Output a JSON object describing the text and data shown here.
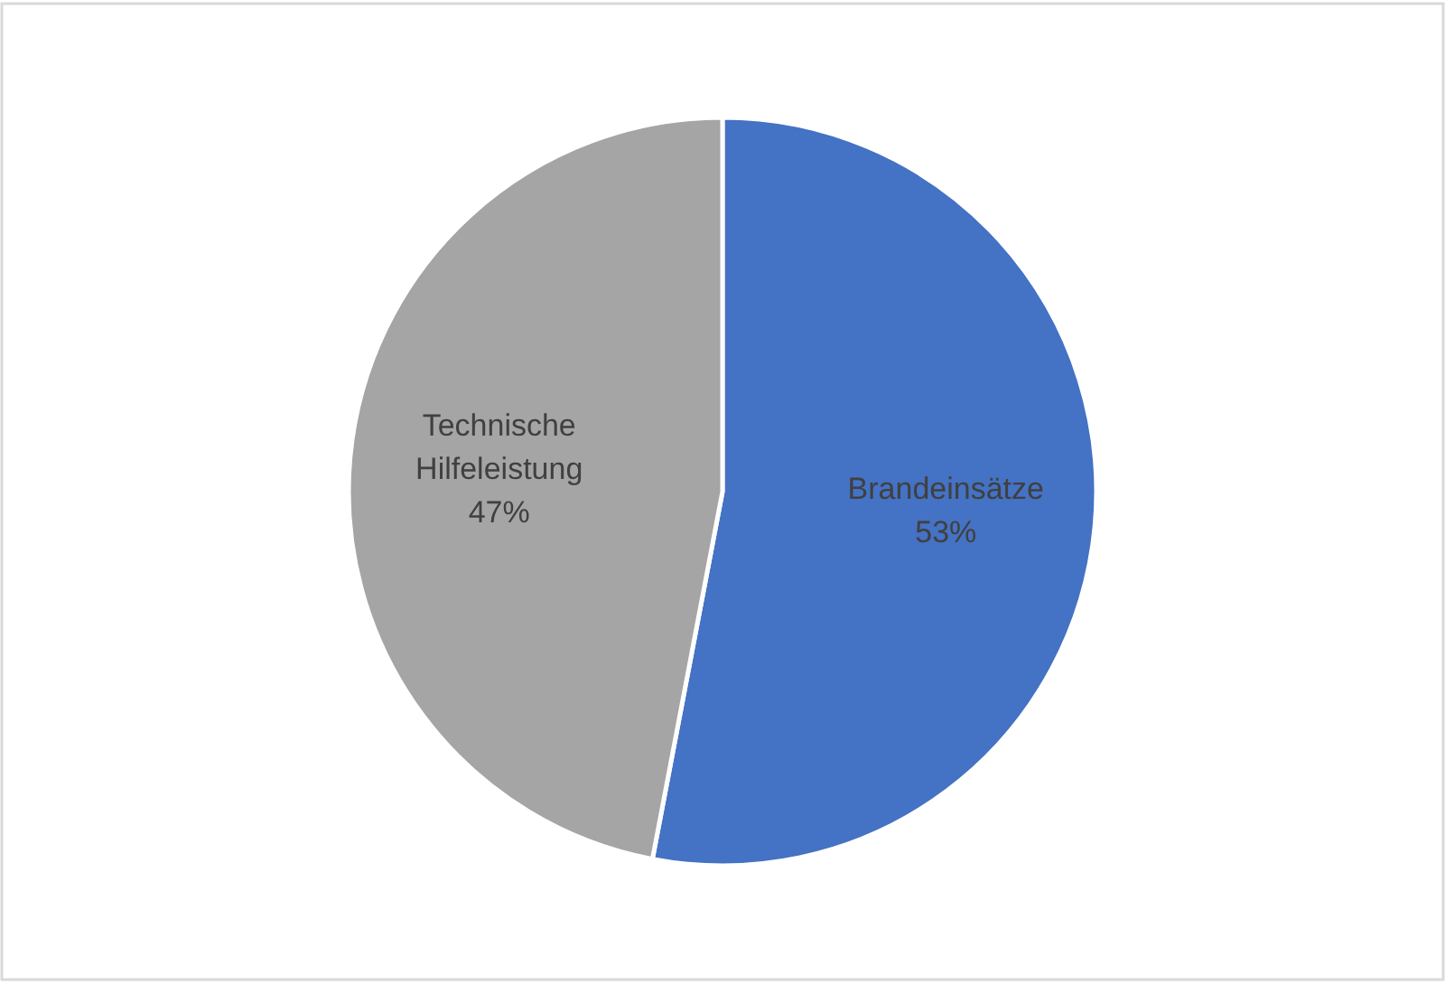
{
  "chart_data": {
    "type": "pie",
    "categories": [
      "Brandeinsätze",
      "Technische Hilfeleistung"
    ],
    "values": [
      53,
      47
    ],
    "colors": [
      "#4472c4",
      "#a5a5a5"
    ],
    "value_labels": [
      "53%",
      "47%"
    ]
  }
}
